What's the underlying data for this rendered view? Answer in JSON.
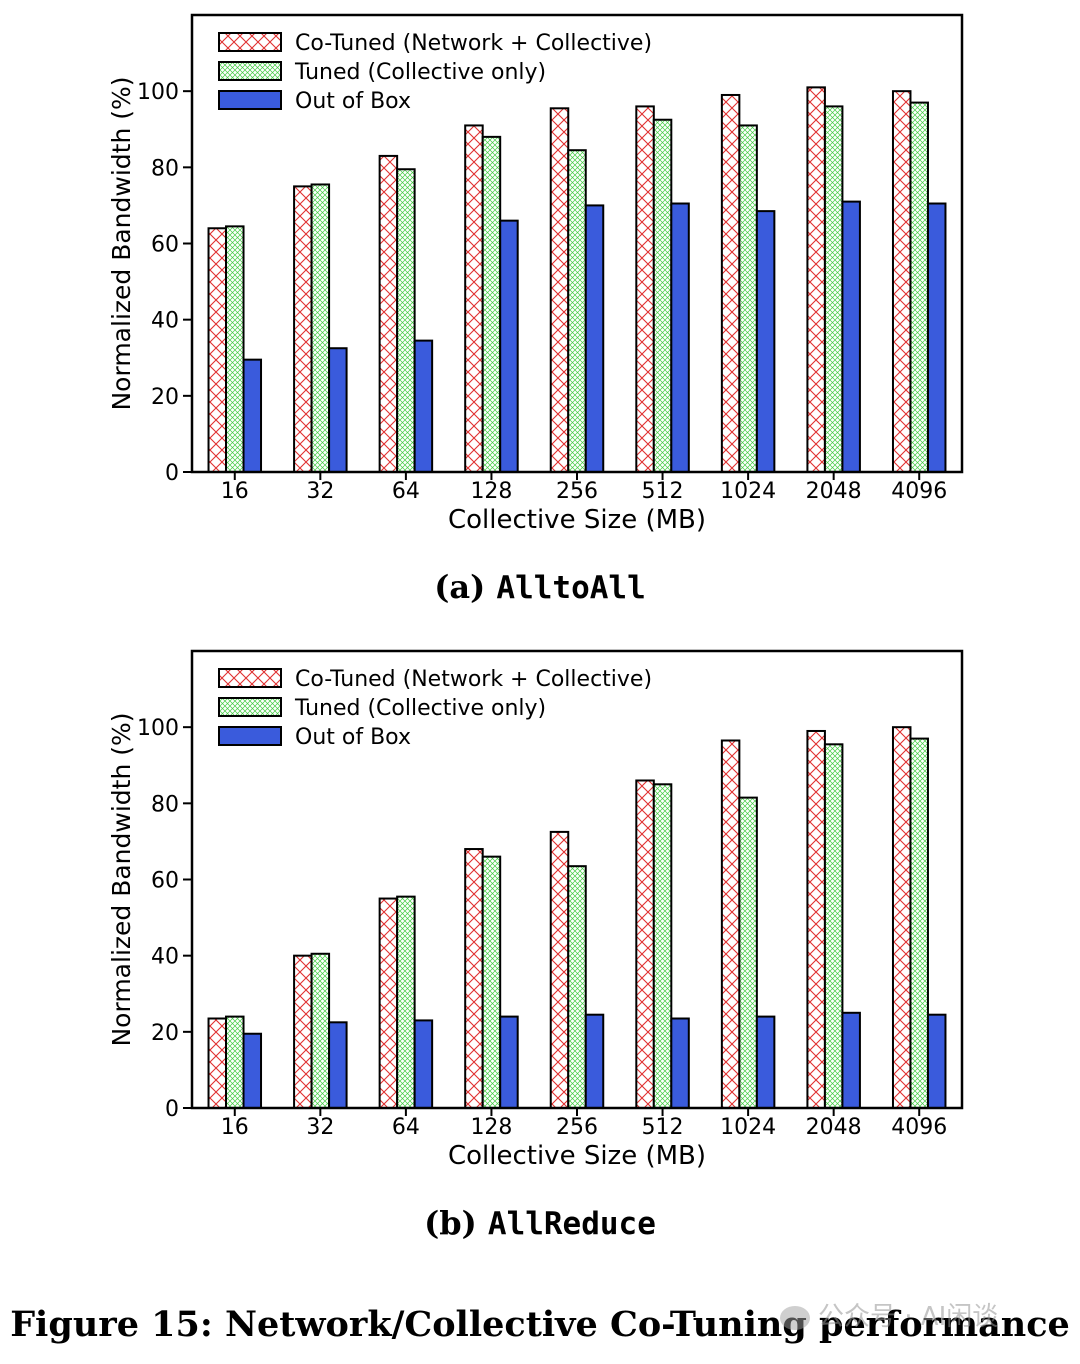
{
  "figure_caption": "Figure 15: Network/Collective Co-Tuning performance",
  "watermark": "公众号 · AI闲谈",
  "colors": {
    "co_tuned": "#e03030",
    "tuned": "#44cc44",
    "out_of_box": "#3a5bdc"
  },
  "chart_data": [
    {
      "type": "bar",
      "caption_prefix": "(a) ",
      "caption_name": "AlltoAll",
      "xlabel": "Collective Size (MB)",
      "ylabel": "Normalized Bandwidth (%)",
      "ylim": [
        0,
        120
      ],
      "yticks": [
        "0",
        "20",
        "40",
        "60",
        "80",
        "100"
      ],
      "categories": [
        "16",
        "32",
        "64",
        "128",
        "256",
        "512",
        "1024",
        "2048",
        "4096"
      ],
      "legend_position": "top-left",
      "series": [
        {
          "name": "Co-Tuned (Network + Collective)",
          "style": "co_tuned",
          "values": [
            64,
            75,
            83,
            91,
            95.5,
            96,
            99,
            101,
            100
          ]
        },
        {
          "name": "Tuned (Collective only)",
          "style": "tuned",
          "values": [
            64.5,
            75.5,
            79.5,
            88,
            84.5,
            92.5,
            91,
            96,
            97
          ]
        },
        {
          "name": "Out of Box",
          "style": "out_of_box",
          "values": [
            29.5,
            32.5,
            34.5,
            66,
            70,
            70.5,
            68.5,
            71,
            70.5
          ]
        }
      ]
    },
    {
      "type": "bar",
      "caption_prefix": "(b) ",
      "caption_name": "AllReduce",
      "xlabel": "Collective Size (MB)",
      "ylabel": "Normalized Bandwidth (%)",
      "ylim": [
        0,
        120
      ],
      "yticks": [
        "0",
        "20",
        "40",
        "60",
        "80",
        "100"
      ],
      "categories": [
        "16",
        "32",
        "64",
        "128",
        "256",
        "512",
        "1024",
        "2048",
        "4096"
      ],
      "legend_position": "top-left",
      "series": [
        {
          "name": "Co-Tuned (Network + Collective)",
          "style": "co_tuned",
          "values": [
            23.5,
            40,
            55,
            68,
            72.5,
            86,
            96.5,
            99,
            100
          ]
        },
        {
          "name": "Tuned (Collective only)",
          "style": "tuned",
          "values": [
            24,
            40.5,
            55.5,
            66,
            63.5,
            85,
            81.5,
            95.5,
            97
          ]
        },
        {
          "name": "Out of Box",
          "style": "out_of_box",
          "values": [
            19.5,
            22.5,
            23,
            24,
            24.5,
            23.5,
            24,
            25,
            24.5
          ]
        }
      ]
    }
  ]
}
